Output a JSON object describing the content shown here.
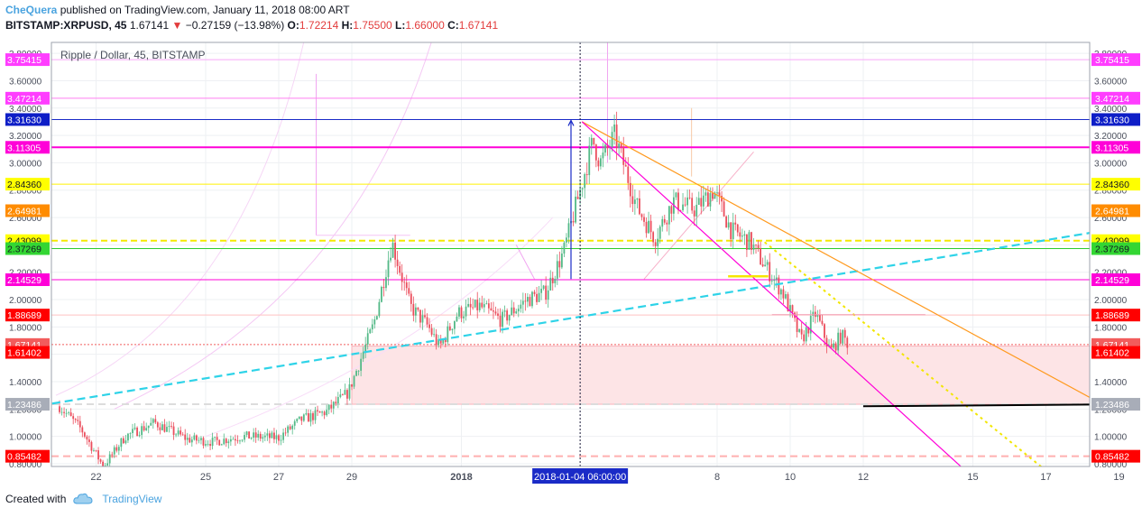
{
  "header": {
    "author": "CheQuera",
    "published_text": " published on TradingView.com, January 11, 2018 08:00 ART",
    "symbol": "BITSTAMP:XRPUSD, 45",
    "last": "1.67141",
    "change": "−0.27159 (−13.98%)",
    "open_label": "O:",
    "open": "1.72214",
    "high_label": "H:",
    "high": "1.75500",
    "low_label": "L:",
    "low": "1.66000",
    "close_label": "C:",
    "close": "1.67141"
  },
  "footer": {
    "created_with": "Created with",
    "brand": "TradingView"
  },
  "chart_data": {
    "type": "candlestick",
    "title": "Ripple / Dollar, 45, BITSTAMP",
    "ylim": [
      0.78,
      3.88
    ],
    "y_ticks": [
      "0.80000",
      "1.00000",
      "1.20000",
      "1.40000",
      "1.60000",
      "1.80000",
      "2.00000",
      "2.20000",
      "2.40000",
      "2.60000",
      "2.80000",
      "3.00000",
      "3.20000",
      "3.40000",
      "3.60000",
      "3.80000"
    ],
    "x_ticks": [
      {
        "label": "22",
        "t": 1.0
      },
      {
        "label": "25",
        "t": 4.0
      },
      {
        "label": "27",
        "t": 6.0
      },
      {
        "label": "29",
        "t": 8.0
      },
      {
        "label": "2018",
        "t": 11.0
      },
      {
        "label": "8",
        "t": 18.0
      },
      {
        "label": "10",
        "t": 20.0
      },
      {
        "label": "12",
        "t": 22.0
      },
      {
        "label": "15",
        "t": 25.0
      },
      {
        "label": "17",
        "t": 27.0
      },
      {
        "label": "19",
        "t": 29.0
      }
    ],
    "crosshair": {
      "label": "2018-01-04 06:00:00",
      "t": 14.25
    },
    "levels": [
      {
        "value": 3.75415,
        "label": "3.75415",
        "color": "#ff3dff",
        "line": "#f7a8f7",
        "width": 1,
        "dash": ""
      },
      {
        "value": 3.47214,
        "label": "3.47214",
        "color": "#ff3dff",
        "line": "#ff7ff0",
        "width": 1,
        "dash": ""
      },
      {
        "value": 3.3163,
        "label": "3.31630",
        "color": "#0e1ec7",
        "line": "#1a2bc7",
        "width": 1,
        "dash": ""
      },
      {
        "value": 3.11305,
        "label": "3.11305",
        "color": "#ff00d8",
        "line": "#ff00d8",
        "width": 2,
        "dash": ""
      },
      {
        "value": 2.8436,
        "label": "2.84360",
        "color": "#ffff00",
        "line": "#fff200",
        "width": 1,
        "dash": ""
      },
      {
        "value": 2.64981,
        "label": "2.64981",
        "color": "#ff8c00",
        "line": "",
        "width": 0,
        "dash": ""
      },
      {
        "value": 2.43099,
        "label": "2.43099",
        "color": "#ffff00",
        "line": "#f5e800",
        "width": 2,
        "dash": "7,4"
      },
      {
        "value": 2.37269,
        "label": "2.37269",
        "color": "#33d633",
        "line": "#2fcc2f",
        "width": 1,
        "dash": ""
      },
      {
        "value": 2.14529,
        "label": "2.14529",
        "color": "#ff00d8",
        "line": "#ff00d8",
        "width": 1,
        "dash": ""
      },
      {
        "value": 1.88689,
        "label": "1.88689",
        "color": "#ff0000",
        "line": "#ffc2c2",
        "width": 1,
        "dash": ""
      },
      {
        "value": 1.67141,
        "label": "1.67141",
        "color": "#f25c5c",
        "line": "#f25c5c",
        "width": 1,
        "dash": "2,2"
      },
      {
        "value": 1.61402,
        "label": "1.61402",
        "color": "#ff0000",
        "line": "",
        "width": 0,
        "dash": ""
      },
      {
        "value": 1.23486,
        "label": "1.23486",
        "color": "#a8adb8",
        "line": "#dcdcdc",
        "width": 2,
        "dash": "8,5"
      },
      {
        "value": 0.85482,
        "label": "0.85482",
        "color": "#ff0000",
        "line": "#ffb0b0",
        "width": 2,
        "dash": "8,5"
      }
    ],
    "series": [
      {
        "name": "XRPUSD",
        "keypoints": [
          [
            0.0,
            1.22
          ],
          [
            0.6,
            1.05
          ],
          [
            1.2,
            0.78
          ],
          [
            1.8,
            1.0
          ],
          [
            2.6,
            1.1
          ],
          [
            3.5,
            0.98
          ],
          [
            4.2,
            0.96
          ],
          [
            5.0,
            1.0
          ],
          [
            6.0,
            0.99
          ],
          [
            6.6,
            1.12
          ],
          [
            7.3,
            1.18
          ],
          [
            7.9,
            1.32
          ],
          [
            8.6,
            1.82
          ],
          [
            9.1,
            2.42
          ],
          [
            9.6,
            1.95
          ],
          [
            10.1,
            1.8
          ],
          [
            10.4,
            1.65
          ],
          [
            10.9,
            1.9
          ],
          [
            11.5,
            1.95
          ],
          [
            12.1,
            1.85
          ],
          [
            12.8,
            2.0
          ],
          [
            13.3,
            2.05
          ],
          [
            13.8,
            2.35
          ],
          [
            14.3,
            2.85
          ],
          [
            14.6,
            3.16
          ],
          [
            14.8,
            3.0
          ],
          [
            15.2,
            3.2
          ],
          [
            15.8,
            2.68
          ],
          [
            16.3,
            2.45
          ],
          [
            16.8,
            2.72
          ],
          [
            17.4,
            2.66
          ],
          [
            17.9,
            2.8
          ],
          [
            18.4,
            2.5
          ],
          [
            18.9,
            2.42
          ],
          [
            19.3,
            2.25
          ],
          [
            19.8,
            2.05
          ],
          [
            20.3,
            1.7
          ],
          [
            20.7,
            1.9
          ],
          [
            21.1,
            1.62
          ],
          [
            21.4,
            1.74
          ],
          [
            21.6,
            1.67141
          ]
        ]
      }
    ],
    "annotations": {
      "zone": {
        "t0": 8.0,
        "t1": 29.4,
        "v0": 1.23486,
        "v1": 1.66
      },
      "channel_dashed": {
        "t0": -0.2,
        "v0": 1.24,
        "t1": 29.4,
        "v1": 2.54
      },
      "orange_trend": {
        "t0": 14.3,
        "v0": 3.3,
        "t1": 30.3,
        "v1": 0.98
      },
      "magenta_trend": {
        "t0": 14.3,
        "v0": 3.3,
        "t1": 25.0,
        "v1": 0.7
      },
      "yellow_dotted": {
        "t0": 19.3,
        "v0": 2.42,
        "t1": 27.0,
        "v1": 0.75
      },
      "black_segment": {
        "t0": 22.0,
        "v0": 1.22,
        "t1": 29.4,
        "v1": 1.235
      },
      "arrow_blue": {
        "t": 14.0,
        "v0": 2.15,
        "v1": 3.31
      },
      "short_yellow": {
        "t0": 18.3,
        "t1": 19.4,
        "v": 2.17
      },
      "short_pink": {
        "t0": 19.5,
        "t1": 23.7,
        "v": 1.89
      }
    }
  }
}
